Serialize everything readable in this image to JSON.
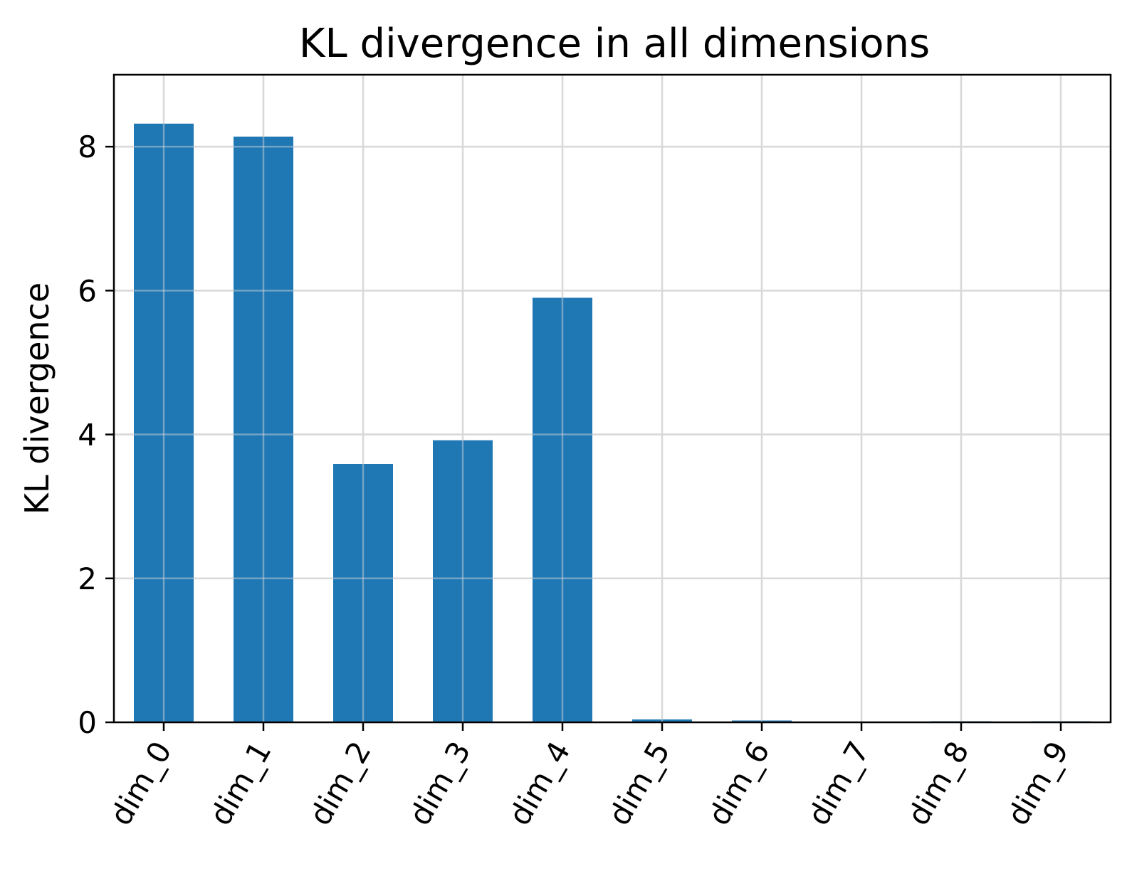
{
  "chart_data": {
    "type": "bar",
    "title": "KL divergence in all dimensions",
    "xlabel": "",
    "ylabel": "KL divergence",
    "categories": [
      "dim_0",
      "dim_1",
      "dim_2",
      "dim_3",
      "dim_4",
      "dim_5",
      "dim_6",
      "dim_7",
      "dim_8",
      "dim_9"
    ],
    "values": [
      8.32,
      8.14,
      3.59,
      3.92,
      5.9,
      0.04,
      0.025,
      0.005,
      0.015,
      0.015
    ],
    "ylim": [
      0,
      9.0
    ],
    "yticks": [
      0,
      2,
      4,
      6,
      8
    ],
    "ytick_labels": [
      "0",
      "2",
      "4",
      "6",
      "8"
    ],
    "grid": true,
    "bar_color": "#1f77b4",
    "grid_color": "#d9d9d9"
  }
}
